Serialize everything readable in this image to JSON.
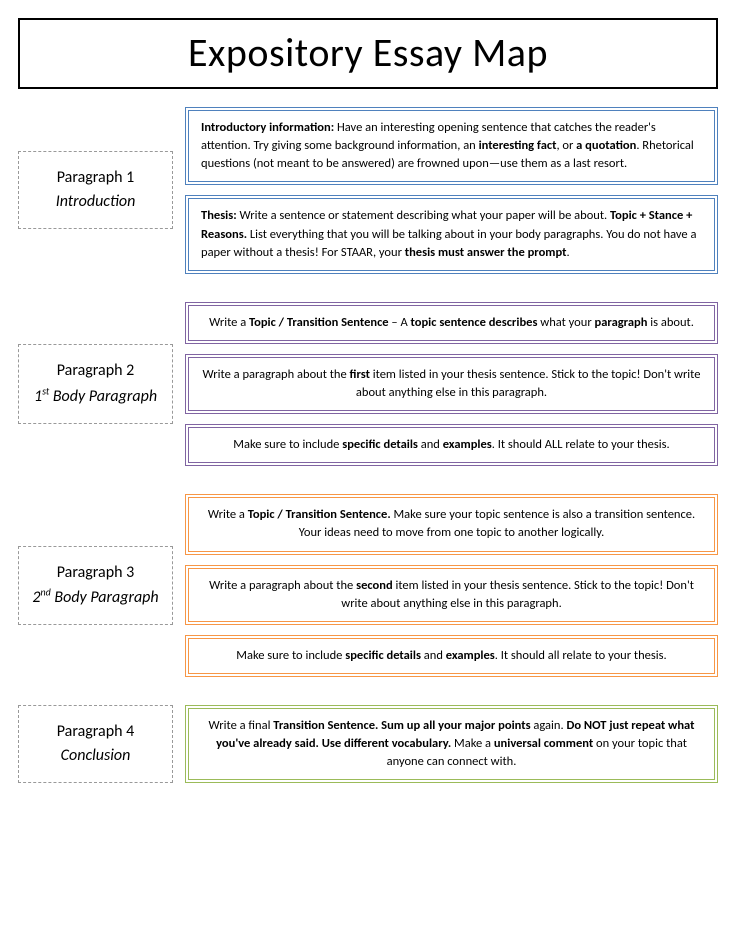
{
  "title": "Expository Essay Map",
  "colors": {
    "blue": "#4f81bd",
    "purple": "#8064a2",
    "orange": "#f79646",
    "green": "#9bbb59",
    "dash": "#999999",
    "text": "#000000",
    "bg": "#ffffff"
  },
  "sections": [
    {
      "label_title": "Paragraph 1",
      "label_sub_html": "<i>Introduction</i>",
      "color": "blue",
      "boxes": [
        {
          "align": "left",
          "html": "<b>Introductory information:</b> Have an interesting opening sentence that catches the reader's attention. Try giving some background information, an <b>interesting fact</b>, or <b>a quotation</b>. Rhetorical questions (not meant to be answered) are frowned upon—use them as a last resort."
        },
        {
          "align": "left",
          "html": "<b>Thesis:</b> Write a sentence or statement describing what your paper will be about. <b>Topic + Stance + Reasons.</b>  List everything that you will be talking about in your body paragraphs. You do not have a paper without a thesis! For STAAR, your <b>thesis must answer the prompt</b>."
        }
      ]
    },
    {
      "label_title": "Paragraph 2",
      "label_sub_html": "<i>1<sup>st</sup> Body Paragraph</i>",
      "color": "purple",
      "boxes": [
        {
          "align": "center",
          "html": "Write a <b>Topic / Transition Sentence</b> – A <b>topic sentence describes</b> what your <b>paragraph</b> is about."
        },
        {
          "align": "center",
          "html": "Write a paragraph about the <b>first</b> item listed in your thesis sentence. Stick to the topic! Don't write about anything else in this paragraph."
        },
        {
          "align": "center",
          "html": "Make sure to include <b>specific details</b> and <b>examples</b>. It should ALL relate to your thesis."
        }
      ]
    },
    {
      "label_title": "Paragraph 3",
      "label_sub_html": "<i>2<sup>nd</sup> Body Paragraph</i>",
      "color": "orange",
      "boxes": [
        {
          "align": "center",
          "html": "Write a <b>Topic / Transition Sentence.</b> Make sure your topic sentence is also a transition sentence. Your ideas need to move from one topic to another logically."
        },
        {
          "align": "center",
          "html": "Write a paragraph about the <b>second</b> item listed in your thesis sentence. Stick to the topic! Don't write about anything else in this paragraph."
        },
        {
          "align": "center",
          "html": "Make sure to include <b>specific details</b> and <b>examples</b>. It should all relate to your thesis."
        }
      ]
    },
    {
      "label_title": "Paragraph 4",
      "label_sub_html": "<i>Conclusion</i>",
      "color": "green",
      "boxes": [
        {
          "align": "center",
          "html": "Write a final <b>Transition Sentence. Sum up all your major points</b> again. <b>Do NOT just repeat what you've already said. Use different vocabulary.</b> Make a <b>universal comment</b> on your topic that anyone can connect with."
        }
      ]
    }
  ]
}
